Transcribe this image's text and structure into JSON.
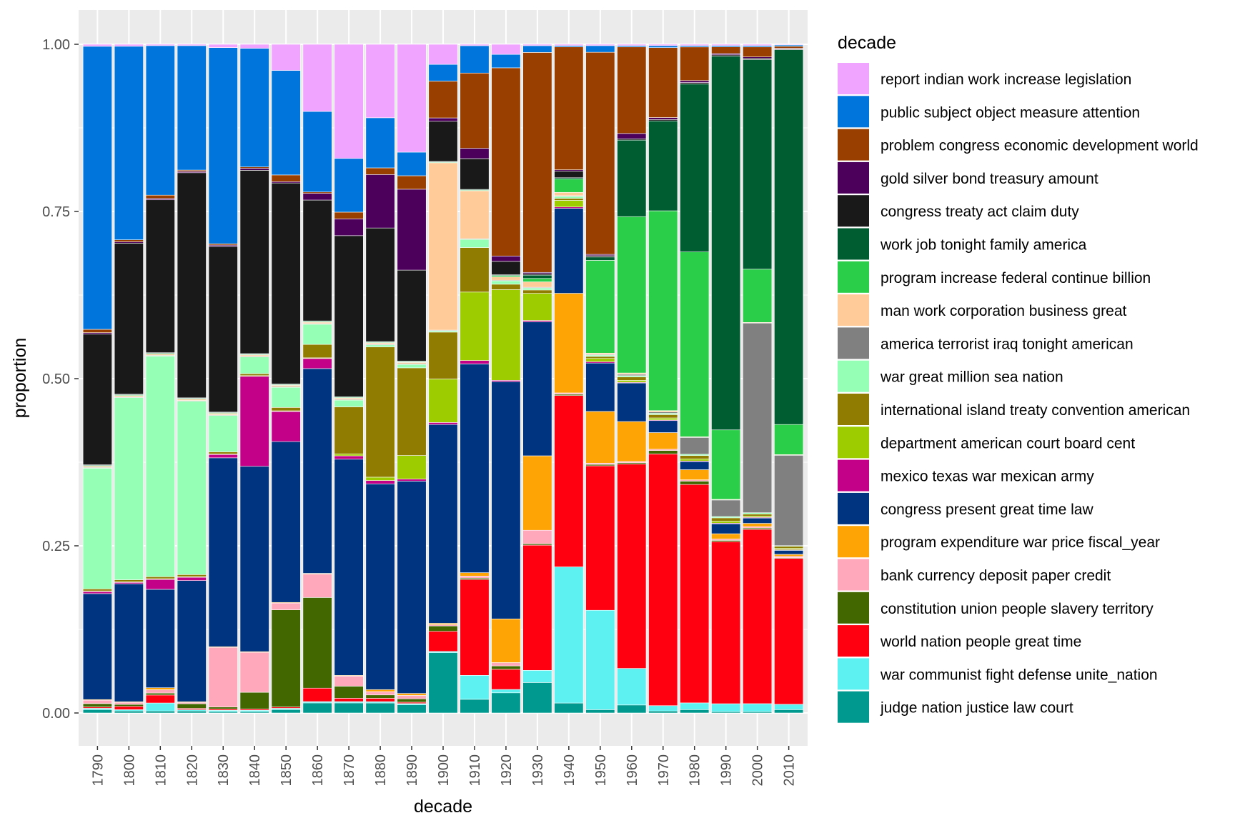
{
  "chart_data": {
    "type": "bar",
    "stacked": "proportion",
    "xlabel": "decade",
    "ylabel": "proportion",
    "ylim": [
      0,
      1
    ],
    "y_ticks": [
      "0.00",
      "0.25",
      "0.50",
      "0.75",
      "1.00"
    ],
    "grid": true,
    "legend": {
      "title": "decade",
      "position": "right"
    },
    "categories": [
      "1790",
      "1800",
      "1810",
      "1820",
      "1830",
      "1840",
      "1850",
      "1860",
      "1870",
      "1880",
      "1890",
      "1900",
      "1910",
      "1920",
      "1930",
      "1940",
      "1950",
      "1960",
      "1970",
      "1980",
      "1990",
      "2000",
      "2010"
    ],
    "series": [
      {
        "name": "report indian work increase legislation",
        "color": "#F0A3FF",
        "values": [
          0.003,
          0.003,
          0.002,
          0.002,
          0.005,
          0.006,
          0.039,
          0.1,
          0.17,
          0.11,
          0.16,
          0.03,
          0.002,
          0.015,
          0.002,
          0.002,
          0.002,
          0.002,
          0.002,
          0.002,
          0.002,
          0.002,
          0.001
        ]
      },
      {
        "name": "public subject object measure attention",
        "color": "#0075DC",
        "values": [
          0.422,
          0.292,
          0.225,
          0.188,
          0.296,
          0.178,
          0.156,
          0.12,
          0.08,
          0.075,
          0.035,
          0.025,
          0.04,
          0.02,
          0.01,
          0.002,
          0.01,
          0.002,
          0.003,
          0.002,
          0.002,
          0.002,
          0.002
        ]
      },
      {
        "name": "problem congress economic development world",
        "color": "#993F00",
        "values": [
          0.005,
          0.003,
          0.005,
          0.002,
          0.002,
          0.002,
          0.01,
          0.002,
          0.01,
          0.01,
          0.02,
          0.055,
          0.11,
          0.28,
          0.325,
          0.185,
          0.305,
          0.13,
          0.105,
          0.05,
          0.01,
          0.015,
          0.003
        ]
      },
      {
        "name": "gold silver bond treasury amount",
        "color": "#4C005C",
        "values": [
          0.002,
          0.002,
          0.002,
          0.002,
          0.002,
          0.003,
          0.002,
          0.01,
          0.025,
          0.08,
          0.12,
          0.005,
          0.015,
          0.008,
          0.002,
          0.002,
          0.002,
          0.008,
          0.003,
          0.003,
          0.002,
          0.002,
          0.001
        ]
      },
      {
        "name": "congress treaty act claim duty",
        "color": "#191919",
        "values": [
          0.195,
          0.228,
          0.23,
          0.34,
          0.25,
          0.275,
          0.3,
          0.18,
          0.24,
          0.17,
          0.135,
          0.06,
          0.045,
          0.02,
          0.002,
          0.01,
          0.002,
          0.002,
          0.002,
          0.002,
          0.002,
          0.002,
          0.001
        ]
      },
      {
        "name": "work job tonight family america",
        "color": "#005C31",
        "values": [
          0.001,
          0.001,
          0.001,
          0.001,
          0.001,
          0.001,
          0.001,
          0.001,
          0.001,
          0.001,
          0.001,
          0.001,
          0.001,
          0.001,
          0.005,
          0.002,
          0.005,
          0.115,
          0.135,
          0.25,
          0.565,
          0.315,
          0.56
        ]
      },
      {
        "name": "program increase federal continue billion",
        "color": "#2BCE48",
        "values": [
          0.001,
          0.001,
          0.001,
          0.001,
          0.001,
          0.001,
          0.001,
          0.001,
          0.001,
          0.001,
          0.001,
          0.001,
          0.001,
          0.002,
          0.005,
          0.02,
          0.14,
          0.235,
          0.3,
          0.275,
          0.105,
          0.08,
          0.045
        ]
      },
      {
        "name": "man work corporation business great",
        "color": "#FFCC99",
        "values": [
          0.002,
          0.002,
          0.002,
          0.002,
          0.002,
          0.002,
          0.002,
          0.002,
          0.002,
          0.002,
          0.002,
          0.25,
          0.07,
          0.005,
          0.008,
          0.005,
          0.002,
          0.002,
          0.002,
          0.001,
          0.001,
          0.001,
          0.001
        ]
      },
      {
        "name": "america terrorist iraq tonight american",
        "color": "#808080",
        "values": [
          0.001,
          0.001,
          0.001,
          0.001,
          0.001,
          0.001,
          0.001,
          0.001,
          0.001,
          0.001,
          0.001,
          0.001,
          0.001,
          0.001,
          0.001,
          0.001,
          0.001,
          0.002,
          0.002,
          0.025,
          0.025,
          0.285,
          0.135
        ]
      },
      {
        "name": "war great million sea nation",
        "color": "#94FFB5",
        "values": [
          0.18,
          0.275,
          0.332,
          0.262,
          0.055,
          0.025,
          0.03,
          0.03,
          0.01,
          0.003,
          0.005,
          0.002,
          0.012,
          0.005,
          0.003,
          0.003,
          0.002,
          0.002,
          0.002,
          0.002,
          0.002,
          0.002,
          0.001
        ]
      },
      {
        "name": "international island treaty convention american",
        "color": "#8F7C00",
        "values": [
          0.003,
          0.003,
          0.003,
          0.003,
          0.003,
          0.003,
          0.005,
          0.02,
          0.07,
          0.195,
          0.13,
          0.07,
          0.065,
          0.008,
          0.005,
          0.003,
          0.003,
          0.005,
          0.005,
          0.005,
          0.005,
          0.003,
          0.003
        ]
      },
      {
        "name": "department american court board cent",
        "color": "#9DCC00",
        "values": [
          0.001,
          0.001,
          0.001,
          0.001,
          0.001,
          0.001,
          0.001,
          0.001,
          0.003,
          0.005,
          0.035,
          0.065,
          0.1,
          0.135,
          0.04,
          0.01,
          0.005,
          0.003,
          0.003,
          0.003,
          0.003,
          0.002,
          0.002
        ]
      },
      {
        "name": "mexico texas war mexican army",
        "color": "#C20088",
        "values": [
          0.003,
          0.002,
          0.015,
          0.005,
          0.005,
          0.135,
          0.045,
          0.015,
          0.005,
          0.005,
          0.003,
          0.003,
          0.005,
          0.002,
          0.002,
          0.002,
          0.002,
          0.001,
          0.001,
          0.001,
          0.001,
          0.001,
          0.001
        ]
      },
      {
        "name": "congress present great time law",
        "color": "#003380",
        "values": [
          0.158,
          0.178,
          0.148,
          0.183,
          0.285,
          0.278,
          0.24,
          0.305,
          0.322,
          0.308,
          0.315,
          0.297,
          0.305,
          0.353,
          0.198,
          0.128,
          0.073,
          0.058,
          0.018,
          0.012,
          0.015,
          0.008,
          0.006
        ]
      },
      {
        "name": "program expenditure war price fiscal_year",
        "color": "#FFA405",
        "values": [
          0.001,
          0.001,
          0.003,
          0.001,
          0.001,
          0.001,
          0.001,
          0.001,
          0.001,
          0.003,
          0.003,
          0.002,
          0.005,
          0.065,
          0.11,
          0.15,
          0.078,
          0.06,
          0.025,
          0.015,
          0.008,
          0.005,
          0.003
        ]
      },
      {
        "name": "bank currency deposit paper credit",
        "color": "#FFA8BB",
        "values": [
          0.005,
          0.003,
          0.005,
          0.002,
          0.09,
          0.06,
          0.01,
          0.035,
          0.015,
          0.005,
          0.005,
          0.002,
          0.003,
          0.005,
          0.02,
          0.002,
          0.002,
          0.002,
          0.002,
          0.002,
          0.002,
          0.002,
          0.002
        ]
      },
      {
        "name": "constitution union people slavery territory",
        "color": "#426600",
        "values": [
          0.005,
          0.003,
          0.003,
          0.007,
          0.003,
          0.025,
          0.145,
          0.135,
          0.018,
          0.005,
          0.005,
          0.008,
          0.002,
          0.005,
          0.002,
          0.002,
          0.002,
          0.002,
          0.005,
          0.005,
          0.002,
          0.002,
          0.001
        ]
      },
      {
        "name": "world nation people great time",
        "color": "#FF0010",
        "values": [
          0.002,
          0.005,
          0.012,
          0.002,
          0.002,
          0.002,
          0.002,
          0.02,
          0.005,
          0.005,
          0.002,
          0.03,
          0.14,
          0.03,
          0.185,
          0.258,
          0.218,
          0.307,
          0.378,
          0.325,
          0.245,
          0.262,
          0.218
        ]
      },
      {
        "name": "war communist fight defense unite_nation",
        "color": "#5EF1F2",
        "values": [
          0.002,
          0.002,
          0.012,
          0.002,
          0.002,
          0.002,
          0.002,
          0.002,
          0.002,
          0.002,
          0.002,
          0.002,
          0.035,
          0.005,
          0.018,
          0.205,
          0.15,
          0.055,
          0.008,
          0.01,
          0.012,
          0.012,
          0.008
        ]
      },
      {
        "name": "judge nation justice law court",
        "color": "#00998F",
        "values": [
          0.005,
          0.003,
          0.003,
          0.003,
          0.002,
          0.002,
          0.005,
          0.015,
          0.015,
          0.015,
          0.012,
          0.09,
          0.02,
          0.03,
          0.045,
          0.015,
          0.005,
          0.012,
          0.003,
          0.005,
          0.002,
          0.002,
          0.005
        ]
      }
    ]
  }
}
